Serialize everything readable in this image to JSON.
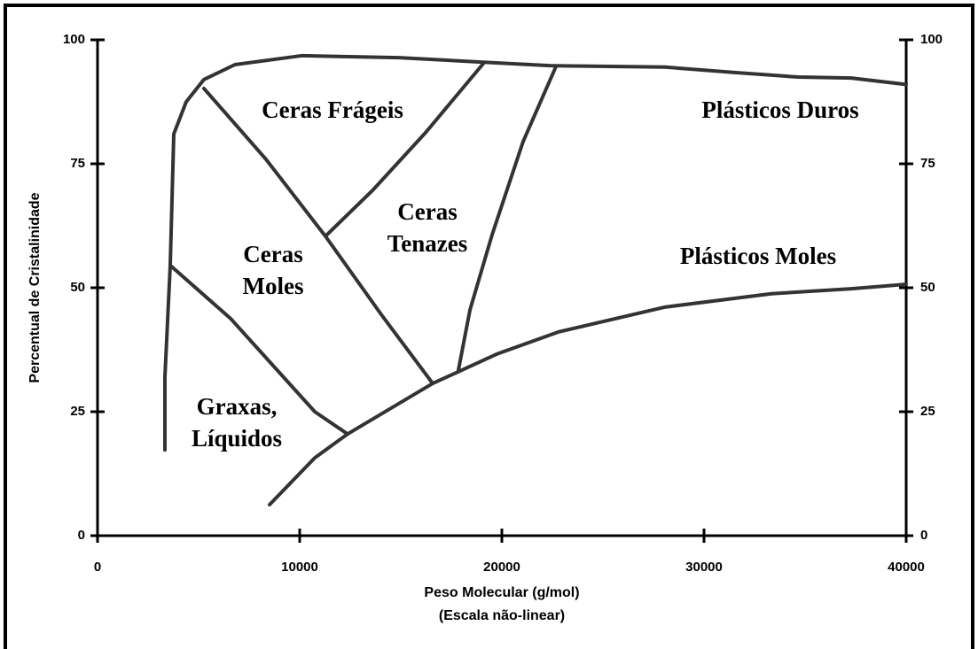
{
  "chart_data": {
    "type": "line",
    "xlabel": [
      "Peso Molecular (g/mol)",
      "(Escala não-linear)"
    ],
    "ylabel": "Percentual de Cristalinidade",
    "xlim": [
      0,
      40000
    ],
    "ylim": [
      0,
      100
    ],
    "xticks": [
      0,
      10000,
      20000,
      30000,
      40000
    ],
    "yticks": [
      0,
      25,
      50,
      75,
      100
    ],
    "y2ticks": [
      0,
      25,
      50,
      75,
      100
    ],
    "series": [
      {
        "color": "#333333",
        "x": [
          3333,
          3333,
          3596,
          3772,
          4386,
          5263,
          6798,
          10088,
          14912,
          19079,
          22368,
          28070,
          31579,
          34649,
          37281,
          40000
        ],
        "values": [
          17.3,
          32,
          54.5,
          81,
          87.5,
          92,
          95,
          96.8,
          96.4,
          95.5,
          94.8,
          94.5,
          93.4,
          92.5,
          92.3,
          91
        ]
      },
      {
        "color": "#333333",
        "x": [
          5263,
          8333,
          11272,
          14035,
          16579
        ],
        "values": [
          90.2,
          75.9,
          60.4,
          44.6,
          30.7
        ]
      },
      {
        "color": "#333333",
        "x": [
          11272,
          13596,
          16228,
          19079
        ],
        "values": [
          60.4,
          69.6,
          81.3,
          95.2
        ]
      },
      {
        "color": "#333333",
        "x": [
          17851,
          18421,
          19518,
          21053,
          22675
        ],
        "values": [
          33.4,
          45.5,
          60.7,
          79.5,
          94.6
        ]
      },
      {
        "color": "#333333",
        "x": [
          3596,
          6579,
          10746,
          12368
        ],
        "values": [
          54.5,
          43.8,
          25,
          20.5
        ]
      },
      {
        "color": "#333333",
        "x": [
          8509,
          10746,
          12368,
          16579,
          19737,
          22807,
          28070,
          33333,
          37281,
          40000
        ],
        "values": [
          6.25,
          15.7,
          20.5,
          30.7,
          36.6,
          41.1,
          46.1,
          48.8,
          49.8,
          50.7
        ]
      }
    ],
    "annotations": [
      [
        "Ceras Frágeis"
      ],
      [
        "Plásticos Duros"
      ],
      [
        "Ceras",
        "Tenazes"
      ],
      [
        "Ceras",
        "Moles"
      ],
      [
        "Plásticos Moles"
      ],
      [
        "Graxas,",
        "Líquidos"
      ]
    ]
  }
}
